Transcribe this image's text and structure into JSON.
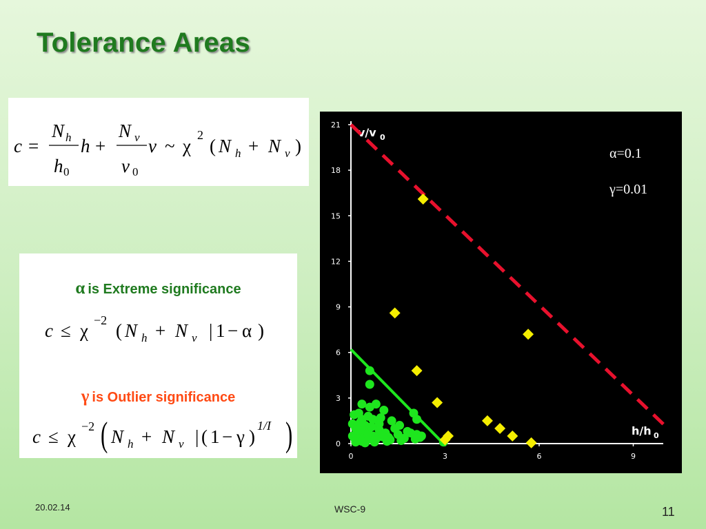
{
  "slide": {
    "title": "Tolerance Areas",
    "footer_date": "20.02.14",
    "footer_center": "WSC-9",
    "page_number": "11"
  },
  "formula_main": {
    "c": "c",
    "eq": "=",
    "N": "N",
    "h": "h",
    "v": "v",
    "zero": "0",
    "plus": "+",
    "tilde": "~",
    "chi": "χ",
    "two": "2",
    "lparen": "(",
    "rparen": ")"
  },
  "alpha_section": {
    "symbol": "α",
    "label": "is Extreme significance",
    "formula": {
      "c": "c",
      "le": "≤",
      "chi": "χ",
      "exp": "−2",
      "lparen": "(",
      "N": "N",
      "h": "h",
      "plus": "+",
      "v": "v",
      "bar": "|",
      "one": "1",
      "minus": "−",
      "alpha": "α",
      "rparen": ")"
    }
  },
  "gamma_section": {
    "symbol": "γ",
    "label": "is Outlier significance",
    "formula": {
      "c": "c",
      "le": "≤",
      "chi": "χ",
      "exp": "−2",
      "N": "N",
      "h": "h",
      "plus": "+",
      "v": "v",
      "bar": "|",
      "lparen": "(",
      "one": "1",
      "minus": "−",
      "gamma": "γ",
      "rparen": ")",
      "exp2": "1/I"
    }
  },
  "colors": {
    "title_green": "#1f7a1f",
    "gamma_orange": "#ff4a14",
    "plot_bg": "#000000",
    "axis": "#ffffff",
    "boundary_line": "#e8112d",
    "inner_line": "#1ee61e",
    "inlier_points": "#1ee61e",
    "outlier_points": "#f5ee00"
  },
  "chart_data": {
    "type": "scatter",
    "xlabel": "h/h",
    "xlabel_sub": "0",
    "ylabel": "v/v",
    "ylabel_sub": "0",
    "xlim": [
      0,
      10
    ],
    "ylim": [
      0,
      21
    ],
    "x_ticks": [
      0,
      3,
      6,
      9
    ],
    "y_ticks": [
      0,
      3,
      6,
      9,
      12,
      15,
      18,
      21
    ],
    "annotations": [
      "α=0.1",
      "γ=0.01"
    ],
    "lines": [
      {
        "role": "extreme-boundary",
        "style": "dashed",
        "x": [
          0,
          10
        ],
        "y": [
          21,
          1.2
        ]
      },
      {
        "role": "inner-boundary",
        "style": "solid",
        "x": [
          0,
          2.95
        ],
        "y": [
          6.2,
          0
        ]
      }
    ],
    "series": [
      {
        "marker": "circle",
        "x": [
          0.6,
          0.6,
          0.1,
          0.35,
          0.25,
          0.05,
          0.15,
          0.35,
          0.6,
          0.8,
          1.05,
          0.45,
          0.55,
          0.95,
          0.1,
          0.3,
          0.5,
          0.7,
          0.9,
          1.3,
          1.1,
          1.4,
          1.8,
          2.1,
          0.2,
          0.4,
          0.75,
          1.2,
          1.6,
          2.05,
          0.15,
          0.45,
          0.85,
          1.5,
          1.7,
          2.2,
          0.05,
          0.25,
          0.55,
          0.65,
          1.0,
          1.25,
          0.3,
          0.9,
          1.55,
          1.9,
          2.25,
          2.0,
          2.1,
          0.2,
          0.5,
          0.8,
          1.15,
          0.35,
          0.7,
          2.95
        ],
        "y": [
          4.8,
          3.9,
          1.9,
          2.6,
          2.0,
          1.3,
          1.0,
          1.6,
          2.4,
          2.6,
          2.2,
          1.2,
          1.8,
          1.7,
          0.4,
          0.6,
          0.8,
          0.5,
          0.9,
          1.5,
          0.7,
          1.0,
          0.8,
          0.6,
          0.2,
          0.3,
          0.1,
          0.4,
          0.2,
          0.3,
          0.1,
          0.05,
          0.5,
          0.6,
          0.35,
          0.4,
          0.5,
          0.9,
          0.7,
          1.1,
          0.45,
          0.25,
          1.4,
          1.3,
          1.2,
          0.7,
          0.5,
          2.0,
          1.6,
          0.9,
          0.2,
          0.3,
          0.15,
          0.15,
          1.6,
          0.1
        ]
      },
      {
        "marker": "diamond",
        "x": [
          2.3,
          1.4,
          2.1,
          2.75,
          3.0,
          3.1,
          4.35,
          4.75,
          5.15,
          5.65,
          5.75
        ],
        "y": [
          16.1,
          8.6,
          4.8,
          2.7,
          0.25,
          0.5,
          1.5,
          1.0,
          0.5,
          7.2,
          0.05
        ]
      }
    ]
  }
}
